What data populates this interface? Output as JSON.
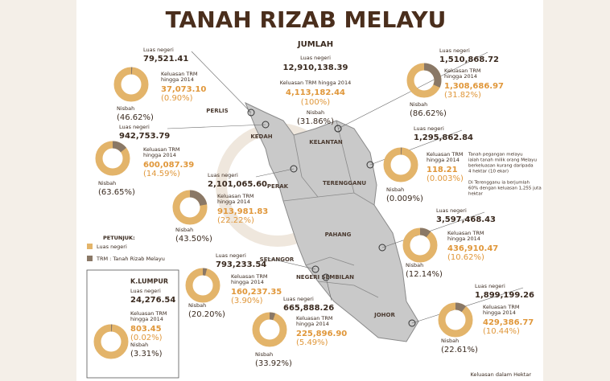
{
  "title": "TANAH RIZAB MELAYU",
  "total": {
    "heading": "JUMLAH",
    "luas_label": "Luas negeri",
    "luas": "12,910,138.39",
    "trm_label": "Keluasan TRM hingga 2014",
    "trm": "4,113,182.44",
    "trm_pct": "(100%)",
    "nisbah_label": "Nisbah",
    "nisbah": "(31.86%)"
  },
  "states": [
    {
      "map_label": "PERLIS",
      "luas_label": "Luas negeri",
      "luas": "79,521.41",
      "trm_label": [
        "Keluasan TRM",
        "hingga 2014"
      ],
      "trm": "37,073.10",
      "trm_pct": "(0.90%)",
      "nisbah_label": "Nisbah",
      "nisbah": "(46.62%)"
    },
    {
      "map_label": "KEDAH",
      "luas_label": "Luas negeri",
      "luas": "942,753.79",
      "trm_label": [
        "Keluasan TRM",
        "hingga 2014"
      ],
      "trm": "600,087.39",
      "trm_pct": "(14.59%)",
      "nisbah_label": "Nisbah",
      "nisbah": "(63.65%)"
    },
    {
      "map_label": "PERAK",
      "luas_label": "Luas negeri",
      "luas": "2,101,065.60",
      "trm_label": [
        "Keluasan TRM",
        "hingga 2014"
      ],
      "trm": "913,981.83",
      "trm_pct": "(22.22%)",
      "nisbah_label": "Nisbah",
      "nisbah": "(43.50%)"
    },
    {
      "map_label": "KELANTAN",
      "luas_label": "Luas negeri",
      "luas": "1,510,868.72",
      "trm_label": [
        "Keluasan TRM",
        "hingga 2014"
      ],
      "trm": "1,308,686.97",
      "trm_pct": "(31.82%)",
      "nisbah_label": "Nisbah",
      "nisbah": "(86.62%)"
    },
    {
      "map_label": "TERENGGANU",
      "luas_label": "Luas negeri",
      "luas": "1,295,862.84",
      "trm_label": [
        "Keluasan TRM",
        "hingga 2014"
      ],
      "trm": "118.21",
      "trm_pct": "(0.003%)",
      "nisbah_label": "Nisbah",
      "nisbah": "(0.009%)"
    },
    {
      "map_label": "PAHANG",
      "luas_label": "Luas negeri",
      "luas": "3,597,468.43",
      "trm_label": [
        "Keluasan TRM",
        "hingga 2014"
      ],
      "trm": "436,910.47",
      "trm_pct": "(10.62%)",
      "nisbah_label": "Nisbah",
      "nisbah": "(12.14%)"
    },
    {
      "map_label": "SELANGOR",
      "luas_label": "Luas negeri",
      "luas": "793,233.54",
      "trm_label": [
        "Keluasan TRM",
        "hingga 2014"
      ],
      "trm": "160,237.35",
      "trm_pct": "(3.90%)",
      "nisbah_label": "Nisbah",
      "nisbah": "(20.20%)"
    },
    {
      "map_label": "K.LUMPUR",
      "luas_label": "Luas negeri",
      "luas": "24,276.54",
      "trm_label": [
        "Keluasan TRM",
        "hingga 2014"
      ],
      "trm": "803.45",
      "trm_pct": "(0.02%)",
      "nisbah_label": "Nisbah",
      "nisbah": "(3.31%)"
    },
    {
      "map_label": "NEGERI SEMBILAN",
      "luas_label": "Luas negeri",
      "luas": "665,888.26",
      "trm_label": [
        "Keluasan TRM",
        "hingga 2014"
      ],
      "trm": "225,896.90",
      "trm_pct": "(5.49%)",
      "nisbah_label": "Nisbah",
      "nisbah": "(33.92%)"
    },
    {
      "map_label": "JOHOR",
      "luas_label": "Luas negeri",
      "luas": "1,899,199.26",
      "trm_label": [
        "Keluasan TRM",
        "hingga 2014"
      ],
      "trm": "429,386.77",
      "trm_pct": "(10.44%)",
      "nisbah_label": "Nisbah",
      "nisbah": "(22.61%)"
    }
  ],
  "terengganu_note": [
    "Tanah pegangan melayu",
    "ialah tanah milik orang Melayu",
    "berkeluasan kurang daripada",
    "4 hektar (10 ekar)",
    "",
    "Di Terengganu ia berjumlah",
    "60% dengan keluasan 1,255 juta",
    "hektar"
  ],
  "legend": {
    "heading": "PETUNJUK:",
    "items": [
      "Luas negeri",
      "TRM : Tanah Rizab Melayu"
    ]
  },
  "footnote": "Keluasan dalam Hektar"
}
